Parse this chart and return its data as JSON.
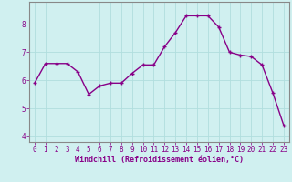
{
  "x": [
    0,
    1,
    2,
    3,
    4,
    5,
    6,
    7,
    8,
    9,
    10,
    11,
    12,
    13,
    14,
    15,
    16,
    17,
    18,
    19,
    20,
    21,
    22,
    23
  ],
  "y": [
    5.9,
    6.6,
    6.6,
    6.6,
    6.3,
    5.5,
    5.8,
    5.9,
    5.9,
    6.25,
    6.55,
    6.55,
    7.2,
    7.7,
    8.3,
    8.3,
    8.3,
    7.9,
    7.0,
    6.9,
    6.85,
    6.55,
    5.55,
    4.4
  ],
  "xlabel": "Windchill (Refroidissement éolien,°C)",
  "xlim": [
    -0.5,
    23.5
  ],
  "ylim": [
    3.8,
    8.8
  ],
  "yticks": [
    4,
    5,
    6,
    7,
    8
  ],
  "xticks": [
    0,
    1,
    2,
    3,
    4,
    5,
    6,
    7,
    8,
    9,
    10,
    11,
    12,
    13,
    14,
    15,
    16,
    17,
    18,
    19,
    20,
    21,
    22,
    23
  ],
  "line_color": "#880088",
  "marker": "+",
  "bg_color": "#d0f0f0",
  "grid_color": "#b0dede",
  "marker_size": 3,
  "line_width": 1.0,
  "tick_fontsize": 5.5,
  "xlabel_fontsize": 6.0
}
